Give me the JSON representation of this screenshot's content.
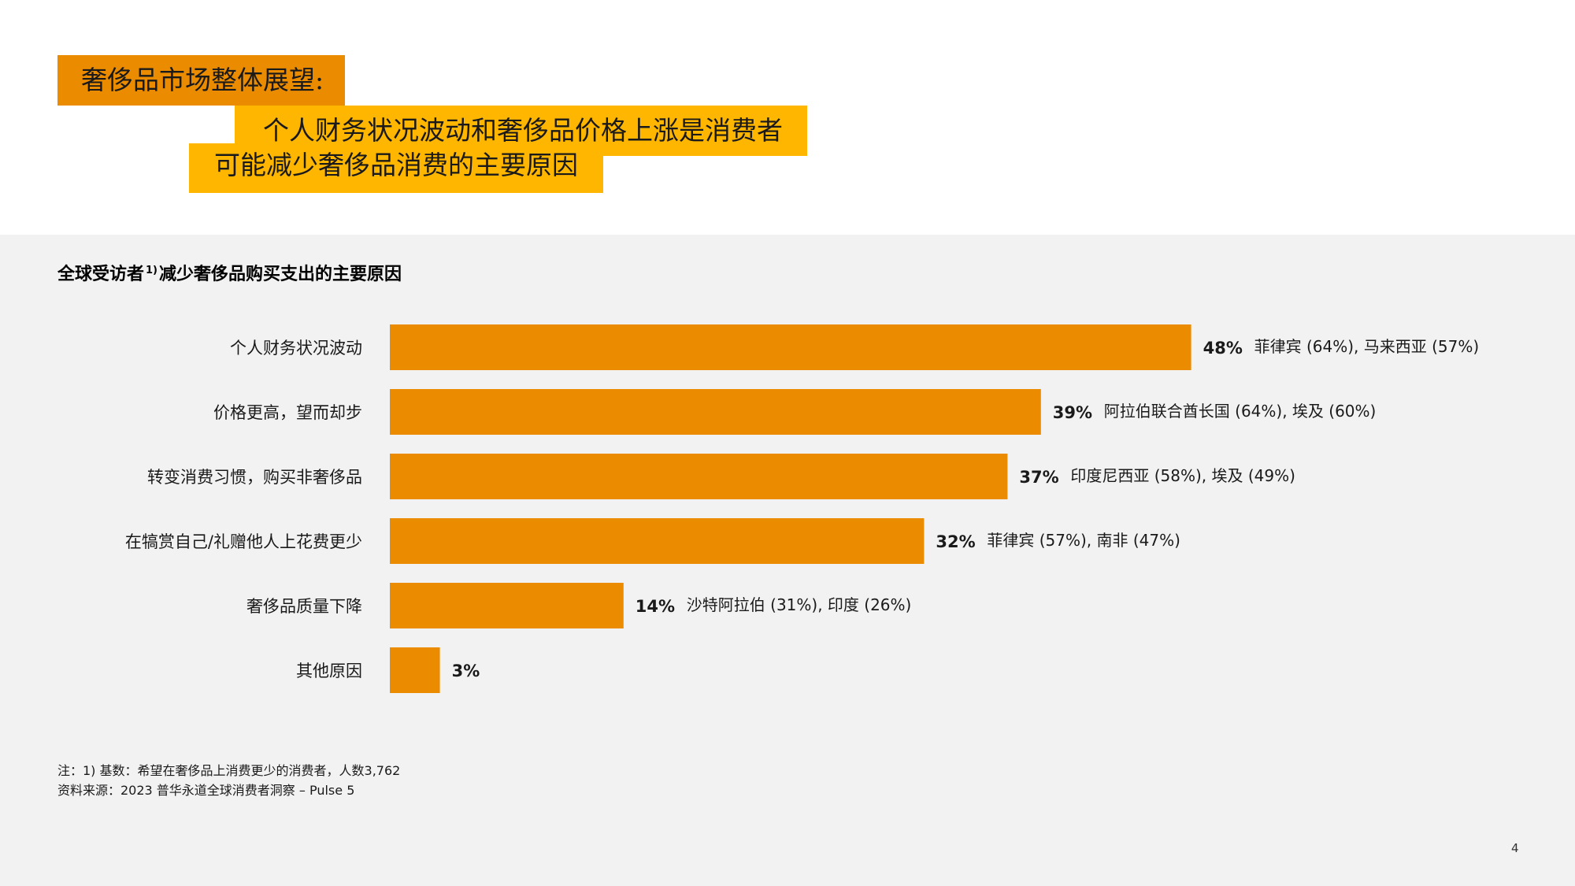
{
  "header": {
    "title_line1": "奢侈品市场整体展望:",
    "title_line2": "个人财务状况波动和奢侈品价格上涨是消费者",
    "title_line3": "可能减少奢侈品消费的主要原因"
  },
  "chart_title": {
    "before": "全球受访者",
    "sup": "1)",
    "after": "减少奢侈品购买支出的主要原因"
  },
  "chart_data": {
    "type": "bar",
    "orientation": "horizontal",
    "categories": [
      "个人财务状况波动",
      "价格更高，望而却步",
      "转变消费习惯，购买非奢侈品",
      "在犒赏自己/礼赠他人上花费更少",
      "奢侈品质量下降",
      "其他原因"
    ],
    "values": [
      48,
      39,
      37,
      32,
      14,
      3
    ],
    "value_labels": [
      "48%",
      "39%",
      "37%",
      "32%",
      "14%",
      "3%"
    ],
    "annotations": [
      "菲律宾 (64%), 马来西亚 (57%)",
      "阿拉伯联合酋长国 (64%),  埃及 (60%)",
      "印度尼西亚 (58%),  埃及 (49%)",
      "菲律宾 (57%), 南非 (47%)",
      "沙特阿拉伯 (31%), 印度 (26%)",
      ""
    ],
    "xlim": [
      0,
      100
    ],
    "grid": false,
    "legend": "none",
    "bar_color": "#eb8c00"
  },
  "notes": {
    "line1": "注：1) 基数：希望在奢侈品上消费更少的消费者，人数3,762",
    "line2": "资料来源：2023 普华永道全球消费者洞察 – Pulse 5"
  },
  "page_number": "4",
  "colors": {
    "orange": "#eb8c00",
    "yellow": "#ffb600",
    "panel": "#f2f2f2"
  }
}
